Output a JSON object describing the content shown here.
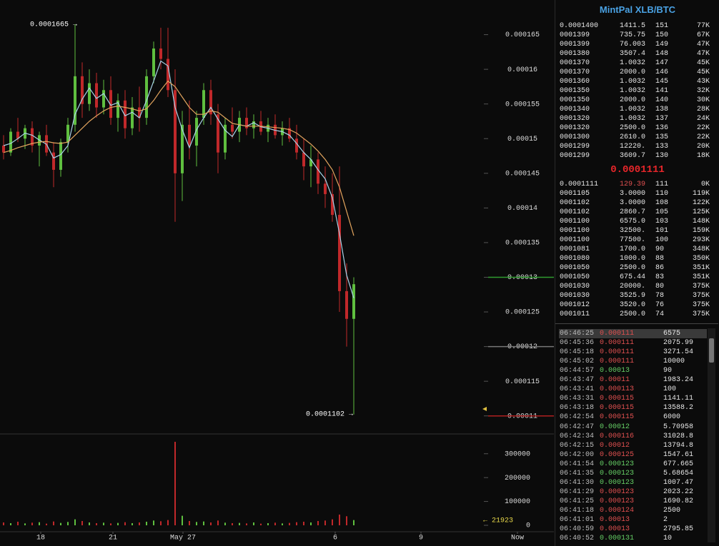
{
  "chart_data": {
    "type": "candlestick",
    "x": [
      0,
      1,
      2,
      3,
      4,
      5,
      6,
      7,
      8,
      9,
      10,
      11,
      12,
      13,
      14,
      15,
      16,
      17,
      18,
      19,
      20,
      21,
      22,
      23,
      24,
      25,
      26,
      27,
      28,
      29,
      30,
      31,
      32,
      33,
      34,
      35,
      36,
      37,
      38,
      39,
      40,
      41,
      42,
      43,
      44,
      45,
      46,
      47,
      48,
      49
    ],
    "open": [
      0.000149,
      0.000148,
      0.000151,
      0.00015,
      0.0001515,
      0.000149,
      0.0001505,
      0.000148,
      0.0001455,
      0.0001495,
      0.000152,
      0.000159,
      0.000155,
      0.000158,
      0.0001545,
      0.000157,
      0.000153,
      0.0001555,
      0.0001515,
      0.0001545,
      0.000153,
      0.000159,
      0.000163,
      0.0001615,
      0.000157,
      0.000145,
      0.000152,
      0.000149,
      0.000153,
      0.000157,
      0.0001535,
      0.000148,
      0.000152,
      0.000151,
      0.000153,
      0.0001515,
      0.0001525,
      0.000151,
      0.000152,
      0.0001505,
      0.0001515,
      0.00015,
      0.000148,
      0.000146,
      0.000147,
      0.0001435,
      0.000142,
      0.000139,
      0.000128,
      0.000124
    ],
    "high": [
      0.0001505,
      0.0001515,
      0.000153,
      0.000152,
      0.0001525,
      0.000151,
      0.000152,
      0.0001495,
      0.00015,
      0.000153,
      0.0001665,
      0.000161,
      0.00016,
      0.0001595,
      0.0001585,
      0.000159,
      0.0001565,
      0.000157,
      0.000156,
      0.0001575,
      0.00016,
      0.000164,
      0.000166,
      0.000166,
      0.00016,
      0.000154,
      0.0001555,
      0.000154,
      0.000158,
      0.0001585,
      0.000155,
      0.000153,
      0.0001545,
      0.000154,
      0.0001545,
      0.0001535,
      0.000154,
      0.000153,
      0.0001535,
      0.0001525,
      0.000153,
      0.000152,
      0.00015,
      0.000149,
      0.000148,
      0.000146,
      0.000145,
      0.000146,
      0.000132,
      0.00013
    ],
    "low": [
      0.000147,
      0.0001475,
      0.0001495,
      0.0001485,
      0.000148,
      0.000146,
      0.0001475,
      0.000143,
      0.0001445,
      0.000148,
      0.000151,
      0.000153,
      0.000154,
      0.000153,
      0.0001535,
      0.000152,
      0.000151,
      0.00015,
      0.0001505,
      0.000151,
      0.000152,
      0.000158,
      0.00016,
      0.000156,
      0.000138,
      0.000141,
      0.000147,
      0.000146,
      0.000152,
      0.000152,
      0.000145,
      0.000147,
      0.00015,
      0.0001495,
      0.0001505,
      0.00015,
      0.0001505,
      0.0001495,
      0.00015,
      0.000149,
      0.0001495,
      0.000147,
      0.000144,
      0.000143,
      0.000142,
      0.00014,
      0.000138,
      0.000125,
      0.00012,
      0.0001102
    ],
    "close": [
      0.000148,
      0.000151,
      0.00015,
      0.0001515,
      0.000149,
      0.0001505,
      0.000148,
      0.0001455,
      0.0001495,
      0.000152,
      0.000159,
      0.000155,
      0.000158,
      0.0001545,
      0.000157,
      0.000153,
      0.0001555,
      0.0001515,
      0.0001545,
      0.000153,
      0.000159,
      0.000163,
      0.0001615,
      0.000157,
      0.000145,
      0.000152,
      0.000149,
      0.000153,
      0.000157,
      0.0001535,
      0.000148,
      0.000152,
      0.000151,
      0.000153,
      0.0001515,
      0.0001525,
      0.000151,
      0.000152,
      0.0001505,
      0.0001515,
      0.00015,
      0.000148,
      0.000146,
      0.000147,
      0.0001435,
      0.000142,
      0.000139,
      0.000128,
      0.000124,
      0.000129
    ],
    "up_color": "#5fbf3f",
    "down_color": "#c0282a",
    "xlim": [
      -0.5,
      77
    ],
    "xticks": [
      {
        "value": 5.2,
        "label": "18"
      },
      {
        "value": 15.3,
        "label": "21"
      },
      {
        "value": 25.1,
        "label": "May 27"
      },
      {
        "value": 46.4,
        "label": "6"
      },
      {
        "value": 58.4,
        "label": "9"
      },
      {
        "value": 71.9,
        "label": "Now"
      }
    ],
    "ylim": [
      0.0001075,
      0.00017
    ],
    "yticks": [
      0.00011,
      0.000115,
      0.00012,
      0.000125,
      0.00013,
      0.000135,
      0.00014,
      0.000145,
      0.00015,
      0.000155,
      0.00016,
      0.000165
    ],
    "moving_averages": [
      {
        "color": "#a9d3e8",
        "values": [
          0.000149,
          0.0001493,
          0.00015,
          0.0001508,
          0.0001505,
          0.0001498,
          0.0001492,
          0.0001472,
          0.0001477,
          0.000149,
          0.0001535,
          0.0001557,
          0.0001573,
          0.0001558,
          0.0001565,
          0.0001548,
          0.0001552,
          0.0001533,
          0.0001538,
          0.000153,
          0.0001555,
          0.0001583,
          0.0001612,
          0.0001605,
          0.0001545,
          0.0001513,
          0.0001487,
          0.0001513,
          0.000153,
          0.0001545,
          0.0001528,
          0.0001512,
          0.0001503,
          0.000152,
          0.0001518,
          0.0001523,
          0.0001517,
          0.0001515,
          0.0001512,
          0.000151,
          0.0001505,
          0.0001493,
          0.000148,
          0.000147,
          0.0001455,
          0.0001442,
          0.0001415,
          0.0001363,
          0.0001303,
          0.000127
        ]
      },
      {
        "color": "#e2a45e",
        "values": [
          0.000148,
          0.0001483,
          0.0001487,
          0.000149,
          0.0001493,
          0.0001495,
          0.0001496,
          0.0001494,
          0.0001493,
          0.0001495,
          0.0001505,
          0.0001515,
          0.0001525,
          0.0001533,
          0.000154,
          0.0001545,
          0.0001547,
          0.0001545,
          0.0001543,
          0.000154,
          0.0001543,
          0.0001555,
          0.000157,
          0.0001583,
          0.0001575,
          0.000156,
          0.0001545,
          0.0001535,
          0.0001535,
          0.000154,
          0.0001538,
          0.000153,
          0.0001522,
          0.000152,
          0.0001518,
          0.0001518,
          0.0001518,
          0.0001517,
          0.0001516,
          0.0001515,
          0.0001513,
          0.0001508,
          0.00015,
          0.0001492,
          0.0001482,
          0.000147,
          0.0001455,
          0.000143,
          0.0001395,
          0.000136
        ]
      }
    ],
    "price_lines": [
      {
        "value": 0.00013,
        "color": "#2f9b2f"
      },
      {
        "value": 0.00012,
        "color": "#777777"
      },
      {
        "value": 0.00011,
        "color": "#b02020"
      }
    ],
    "volume": {
      "values": [
        12000,
        9000,
        15000,
        8000,
        11000,
        13000,
        7000,
        16000,
        10000,
        14000,
        25000,
        18000,
        12000,
        9000,
        11000,
        8000,
        10000,
        13000,
        9000,
        12000,
        15000,
        20000,
        17000,
        22000,
        350000,
        40000,
        18000,
        14000,
        16000,
        12000,
        20000,
        11000,
        9000,
        10000,
        8000,
        12000,
        7000,
        9000,
        11000,
        8000,
        10000,
        13000,
        15000,
        12000,
        18000,
        20000,
        25000,
        45000,
        38000,
        21923
      ],
      "ylim": [
        0,
        380000
      ],
      "yticks": [
        0,
        100000,
        200000,
        300000
      ]
    },
    "annotations": [
      "0.0001665 →",
      "0.0001102 →",
      "← 21923"
    ]
  },
  "order_book": {
    "title": "MintPal XLB/BTC",
    "asks": [
      [
        "0.0001400",
        "1411.5",
        "151",
        "77K"
      ],
      [
        "0001399",
        "735.75",
        "150",
        "67K"
      ],
      [
        "0001399",
        "76.003",
        "149",
        "47K"
      ],
      [
        "0001380",
        "3507.4",
        "148",
        "47K"
      ],
      [
        "0001370",
        "1.0032",
        "147",
        "45K"
      ],
      [
        "0001370",
        "2000.0",
        "146",
        "45K"
      ],
      [
        "0001360",
        "1.0032",
        "145",
        "43K"
      ],
      [
        "0001350",
        "1.0032",
        "141",
        "32K"
      ],
      [
        "0001350",
        "2000.0",
        "140",
        "30K"
      ],
      [
        "0001340",
        "1.0032",
        "138",
        "28K"
      ],
      [
        "0001320",
        "1.0032",
        "137",
        "24K"
      ],
      [
        "0001320",
        "2500.0",
        "136",
        "22K"
      ],
      [
        "0001300",
        "2610.0",
        "135",
        "22K"
      ],
      [
        "0001299",
        "12220.",
        "133",
        "20K"
      ],
      [
        "0001299",
        "3609.7",
        "130",
        "18K"
      ]
    ],
    "last_price": "0.0001111",
    "bids": [
      [
        "0.0001111",
        "129.39",
        "111",
        "0K"
      ],
      [
        "0001105",
        "3.0000",
        "110",
        "119K"
      ],
      [
        "0001102",
        "3.0000",
        "108",
        "122K"
      ],
      [
        "0001102",
        "2860.7",
        "105",
        "125K"
      ],
      [
        "0001100",
        "6575.0",
        "103",
        "148K"
      ],
      [
        "0001100",
        "32500.",
        "101",
        "159K"
      ],
      [
        "0001100",
        "77500.",
        "100",
        "293K"
      ],
      [
        "0001081",
        "1700.0",
        "90",
        "348K"
      ],
      [
        "0001080",
        "1000.0",
        "88",
        "350K"
      ],
      [
        "0001050",
        "2500.0",
        "86",
        "351K"
      ],
      [
        "0001050",
        "675.44",
        "83",
        "351K"
      ],
      [
        "0001030",
        "20000.",
        "80",
        "375K"
      ],
      [
        "0001030",
        "3525.9",
        "78",
        "375K"
      ],
      [
        "0001012",
        "3520.0",
        "76",
        "375K"
      ],
      [
        "0001011",
        "2500.0",
        "74",
        "375K"
      ]
    ]
  },
  "trades": [
    {
      "time": "06:46:25",
      "price": "0.000111",
      "amount": "6575",
      "color": "#e05050"
    },
    {
      "time": "06:45:36",
      "price": "0.000111",
      "amount": "2075.99",
      "color": "#e05050"
    },
    {
      "time": "06:45:18",
      "price": "0.000111",
      "amount": "3271.54",
      "color": "#e05050"
    },
    {
      "time": "06:45:02",
      "price": "0.000111",
      "amount": "10000",
      "color": "#e05050"
    },
    {
      "time": "06:44:57",
      "price": "0.00013",
      "amount": "90",
      "color": "#66d066"
    },
    {
      "time": "06:43:47",
      "price": "0.00011",
      "amount": "1983.24",
      "color": "#e05050"
    },
    {
      "time": "06:43:41",
      "price": "0.000113",
      "amount": "100",
      "color": "#e05050"
    },
    {
      "time": "06:43:31",
      "price": "0.000115",
      "amount": "1141.11",
      "color": "#e05050"
    },
    {
      "time": "06:43:18",
      "price": "0.000115",
      "amount": "13588.2",
      "color": "#e05050"
    },
    {
      "time": "06:42:54",
      "price": "0.000115",
      "amount": "6000",
      "color": "#e05050"
    },
    {
      "time": "06:42:47",
      "price": "0.00012",
      "amount": "5.70958",
      "color": "#66d066"
    },
    {
      "time": "06:42:34",
      "price": "0.000116",
      "amount": "31028.8",
      "color": "#e05050"
    },
    {
      "time": "06:42:15",
      "price": "0.00012",
      "amount": "13794.8",
      "color": "#e05050"
    },
    {
      "time": "06:42:00",
      "price": "0.000125",
      "amount": "1547.61",
      "color": "#e05050"
    },
    {
      "time": "06:41:54",
      "price": "0.000123",
      "amount": "677.665",
      "color": "#66d066"
    },
    {
      "time": "06:41:35",
      "price": "0.000123",
      "amount": "5.68654",
      "color": "#66d066"
    },
    {
      "time": "06:41:30",
      "price": "0.000123",
      "amount": "1007.47",
      "color": "#66d066"
    },
    {
      "time": "06:41:29",
      "price": "0.000123",
      "amount": "2023.22",
      "color": "#e05050"
    },
    {
      "time": "06:41:25",
      "price": "0.000123",
      "amount": "1690.82",
      "color": "#e05050"
    },
    {
      "time": "06:41:18",
      "price": "0.000124",
      "amount": "2500",
      "color": "#e05050"
    },
    {
      "time": "06:41:01",
      "price": "0.00013",
      "amount": "2",
      "color": "#e05050"
    },
    {
      "time": "06:40:59",
      "price": "0.00013",
      "amount": "2795.85",
      "color": "#e05050"
    },
    {
      "time": "06:40:52",
      "price": "0.000131",
      "amount": "10",
      "color": "#66d066"
    }
  ]
}
